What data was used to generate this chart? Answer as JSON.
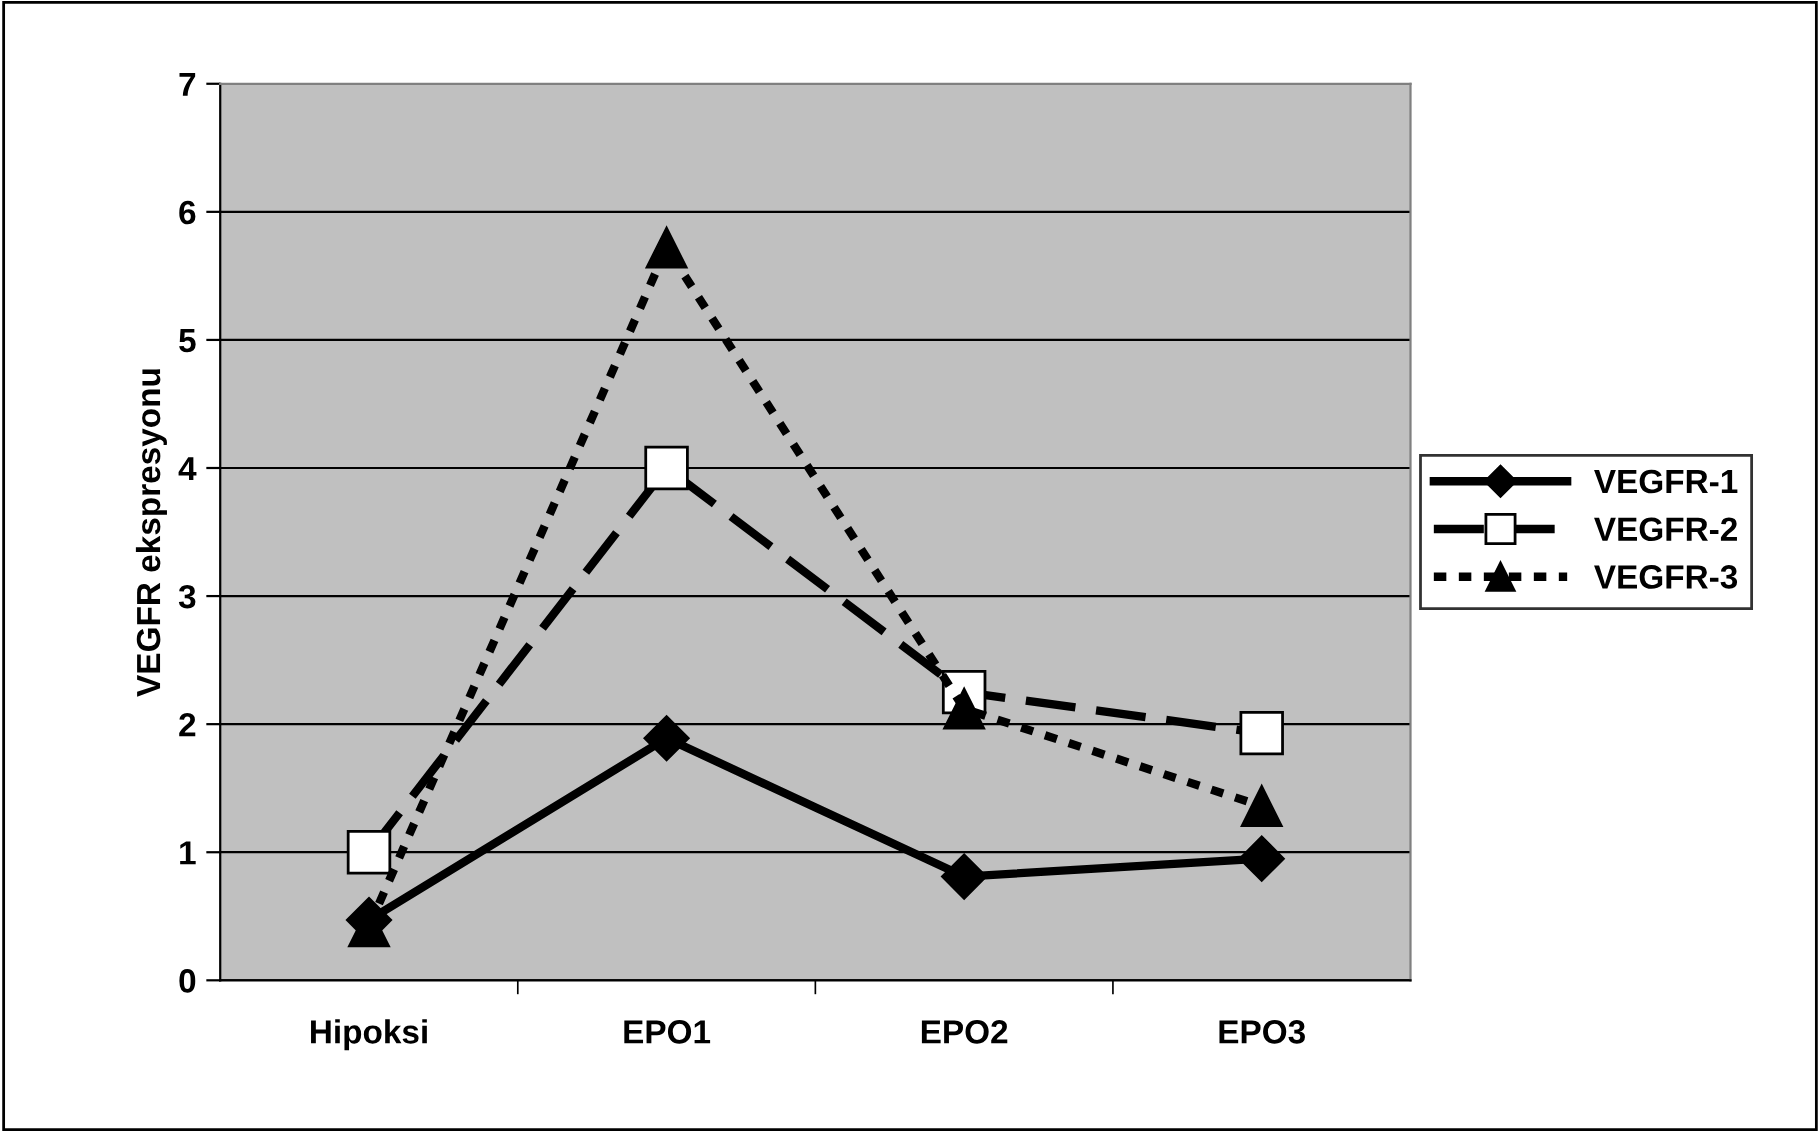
{
  "chart_data": {
    "type": "line",
    "ylabel": "VEGFR ekspresyonu",
    "categories": [
      "Hipoksi",
      "EPO1",
      "EPO2",
      "EPO3"
    ],
    "series": [
      {
        "name": "VEGFR-1",
        "color": "#000000",
        "values": [
          0.47,
          1.89,
          0.81,
          0.95
        ],
        "marker": "diamond",
        "line_style": "solid"
      },
      {
        "name": "VEGFR-2",
        "color": "#000000",
        "values": [
          1.0,
          4.0,
          2.25,
          1.93
        ],
        "marker": "square",
        "line_style": "dashed"
      },
      {
        "name": "VEGFR-3",
        "color": "#000000",
        "values": [
          0.42,
          5.72,
          2.12,
          1.36
        ],
        "marker": "triangle",
        "line_style": "dotted"
      }
    ],
    "ylim": [
      0,
      7
    ],
    "yticks": [
      0,
      1,
      2,
      3,
      4,
      5,
      6,
      7
    ],
    "grid": "y",
    "legend": "right"
  }
}
